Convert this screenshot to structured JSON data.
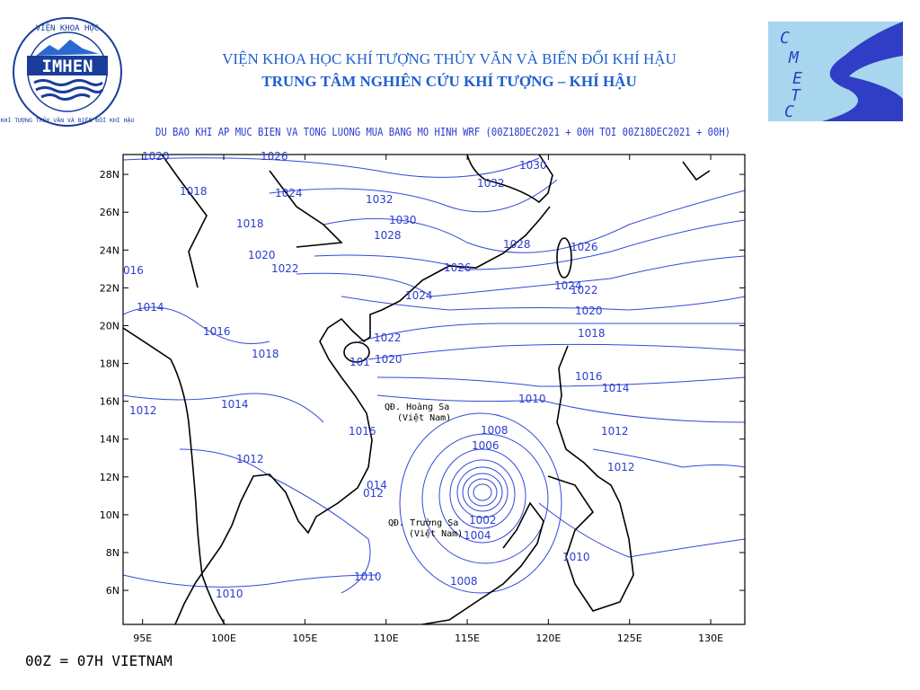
{
  "header": {
    "institute": "VIỆN KHOA HỌC KHÍ TƯỢNG THỦY VĂN VÀ BIẾN ĐỔI KHÍ HẬU",
    "center": "TRUNG TÂM NGHIÊN CỨU KHÍ TƯỢNG – KHÍ HẬU",
    "subtitle": "DU BAO KHI AP MUC BIEN VA TONG LUONG MUA BANG MO HINH WRF (00Z18DEC2021 + 00H TOI 00Z18DEC2021 + 00H)"
  },
  "logo": {
    "top": "VIỆN KHOA HỌC",
    "acronym": "IMHEN",
    "bottom": "KHÍ TƯỢNG THỦY VĂN VÀ BIẾN ĐỔI KHÍ HẬU"
  },
  "cmetc": [
    "C",
    "M",
    "E",
    "T",
    "C"
  ],
  "map": {
    "xlim": [
      93.8,
      132.1
    ],
    "ylim": [
      4.2,
      29.05
    ],
    "xticks": [
      {
        "value": 95,
        "label": "95E"
      },
      {
        "value": 100,
        "label": "100E"
      },
      {
        "value": 105,
        "label": "105E"
      },
      {
        "value": 110,
        "label": "110E"
      },
      {
        "value": 115,
        "label": "115E"
      },
      {
        "value": 120,
        "label": "120E"
      },
      {
        "value": 125,
        "label": "125E"
      },
      {
        "value": 130,
        "label": "130E"
      }
    ],
    "yticks": [
      {
        "value": 6,
        "label": "6N"
      },
      {
        "value": 8,
        "label": "8N"
      },
      {
        "value": 10,
        "label": "10N"
      },
      {
        "value": 12,
        "label": "12N"
      },
      {
        "value": 14,
        "label": "14N"
      },
      {
        "value": 16,
        "label": "16N"
      },
      {
        "value": 18,
        "label": "18N"
      },
      {
        "value": 20,
        "label": "20N"
      },
      {
        "value": 22,
        "label": "22N"
      },
      {
        "value": 24,
        "label": "24N"
      },
      {
        "value": 26,
        "label": "26N"
      },
      {
        "value": 28,
        "label": "28N"
      }
    ],
    "isobar_labels": [
      "1020",
      "1026",
      "1030",
      "1018",
      "1024",
      "1032",
      "1032",
      "1018",
      "1030",
      "1028",
      "1026",
      "1028",
      "1020",
      "016",
      "1022",
      "1026",
      "1024",
      "1022",
      "1024",
      "1014",
      "1020",
      "1016",
      "1022",
      "1018",
      "1018",
      "1020",
      "101",
      "1016",
      "1014",
      "1010",
      "1012",
      "1014",
      "1016",
      "1008",
      "1012",
      "1006",
      "1012",
      "1012",
      "014",
      "012",
      "1002",
      "1004",
      "1010",
      "1010",
      "1008",
      "1010"
    ],
    "places": [
      "QĐ. Hoàng Sa",
      "(Việt Nam)",
      "QĐ. Trường Sa",
      "(Việt Nam)"
    ]
  },
  "footer": "00Z = 07H VIETNAM"
}
